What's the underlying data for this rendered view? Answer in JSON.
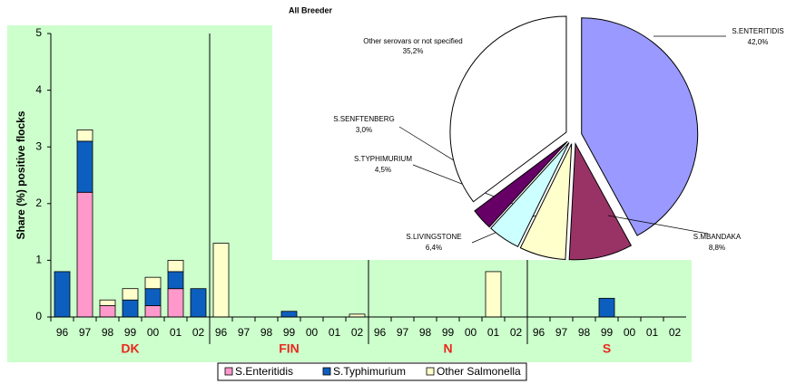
{
  "chart_data": [
    {
      "type": "bar",
      "stacked": true,
      "y_label": "Share (%) positive flocks",
      "categories": [
        "96",
        "97",
        "98",
        "99",
        "00",
        "01",
        "02",
        "96",
        "97",
        "98",
        "99",
        "00",
        "01",
        "02",
        "96",
        "97",
        "98",
        "99",
        "00",
        "01",
        "02",
        "96",
        "97",
        "98",
        "99",
        "00",
        "01",
        "02"
      ],
      "groups": [
        "DK",
        "FIN",
        "N",
        "S"
      ],
      "series": [
        {
          "name": "S.Enteritidis",
          "color": "#ff99cc",
          "values": [
            0,
            2.2,
            0.2,
            0,
            0.2,
            0.5,
            0,
            0,
            0,
            0,
            0,
            0,
            0,
            0,
            0,
            0,
            0,
            0,
            0,
            0,
            0,
            0,
            0,
            0,
            0,
            0,
            0,
            0
          ]
        },
        {
          "name": "S.Typhimurium",
          "color": "#0d5fbf",
          "values": [
            0.8,
            0.9,
            0,
            0.3,
            0.3,
            0.3,
            0.5,
            0,
            0,
            0,
            0.1,
            0,
            0,
            0,
            0,
            0,
            0,
            0,
            0,
            0,
            0,
            0,
            0,
            0,
            0.33,
            0,
            0,
            0
          ]
        },
        {
          "name": "Other Salmonella",
          "color": "#ffffcc",
          "values": [
            0,
            0.2,
            0.1,
            0.2,
            0.2,
            0.2,
            0,
            1.3,
            0,
            0,
            0,
            0,
            0,
            0.05,
            0,
            0,
            0,
            0,
            0,
            0.8,
            0,
            0,
            0,
            0,
            0,
            0,
            0,
            0
          ]
        }
      ],
      "ylim": [
        0,
        5
      ],
      "yticks": [
        0,
        1,
        2,
        3,
        4,
        5
      ],
      "legend": "bottom"
    },
    {
      "type": "pie",
      "title": "All Breeder",
      "labels": [
        "S.ENTERITIDIS",
        "S.MBANDAKA",
        "S.LIVINGSTONE",
        "S.TYPHIMURIUM",
        "S.SENFTENBERG",
        "Other serovars or not specified"
      ],
      "values": [
        42.0,
        8.8,
        6.4,
        4.5,
        3.0,
        35.2
      ],
      "value_labels": [
        "42,0%",
        "8,8%",
        "6,4%",
        "4,5%",
        "3,0%",
        "35,2%"
      ],
      "colors": [
        "#9999ff",
        "#993366",
        "#ffffcc",
        "#ccffff",
        "#660066",
        "#ffffff"
      ]
    }
  ]
}
